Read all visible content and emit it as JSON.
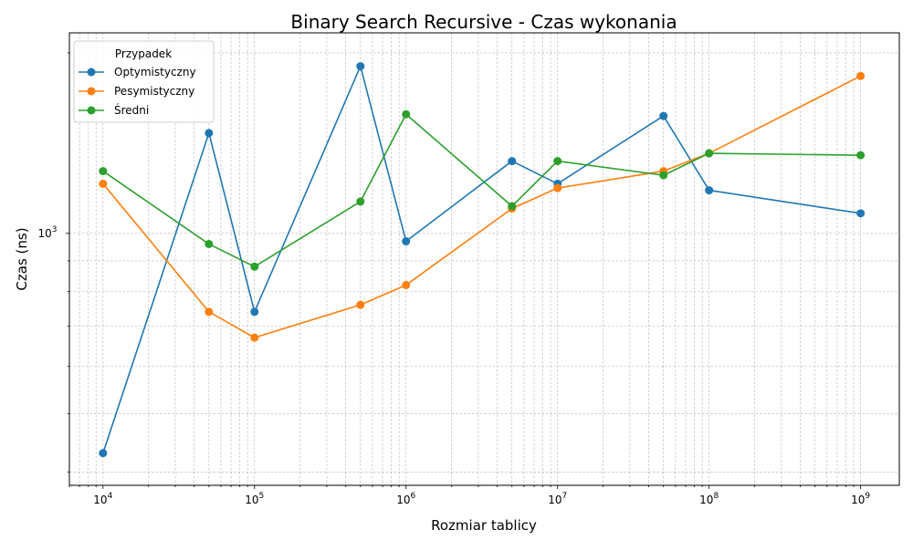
{
  "chart_data": {
    "type": "line",
    "title": "Binary Search Recursive - Czas wykonania",
    "xlabel": "Rozmiar tablicy",
    "ylabel": "Czas (ns)",
    "x_scale": "log",
    "y_scale": "log",
    "xlim": [
      6000,
      1800000000
    ],
    "ylim": [
      380,
      2160
    ],
    "grid": true,
    "legend_placement": "top-left",
    "legend_title": "Przypadek",
    "x": [
      10000,
      50000,
      100000,
      500000,
      1000000,
      5000000,
      10000000,
      50000000,
      100000000,
      1000000000
    ],
    "x_ticks": [
      {
        "base": "10",
        "exp": "4",
        "value": 10000
      },
      {
        "base": "10",
        "exp": "5",
        "value": 100000
      },
      {
        "base": "10",
        "exp": "6",
        "value": 1000000
      },
      {
        "base": "10",
        "exp": "7",
        "value": 10000000
      },
      {
        "base": "10",
        "exp": "8",
        "value": 100000000
      },
      {
        "base": "10",
        "exp": "9",
        "value": 1000000000
      }
    ],
    "y_ticks": [
      {
        "base": "10",
        "exp": "3",
        "value": 1000
      }
    ],
    "series": [
      {
        "name": "Optymistyczny",
        "color": "#1f77b4",
        "values": [
          430,
          1470,
          740,
          1900,
          970,
          1320,
          1210,
          1570,
          1180,
          1080
        ]
      },
      {
        "name": "Pesymistyczny",
        "color": "#ff7f0e",
        "values": [
          1210,
          740,
          670,
          760,
          820,
          1100,
          1190,
          1270,
          1360,
          1830
        ]
      },
      {
        "name": "Średni",
        "color": "#2ca02c",
        "values": [
          1270,
          960,
          880,
          1130,
          1580,
          1110,
          1320,
          1250,
          1360,
          1350
        ]
      }
    ]
  }
}
